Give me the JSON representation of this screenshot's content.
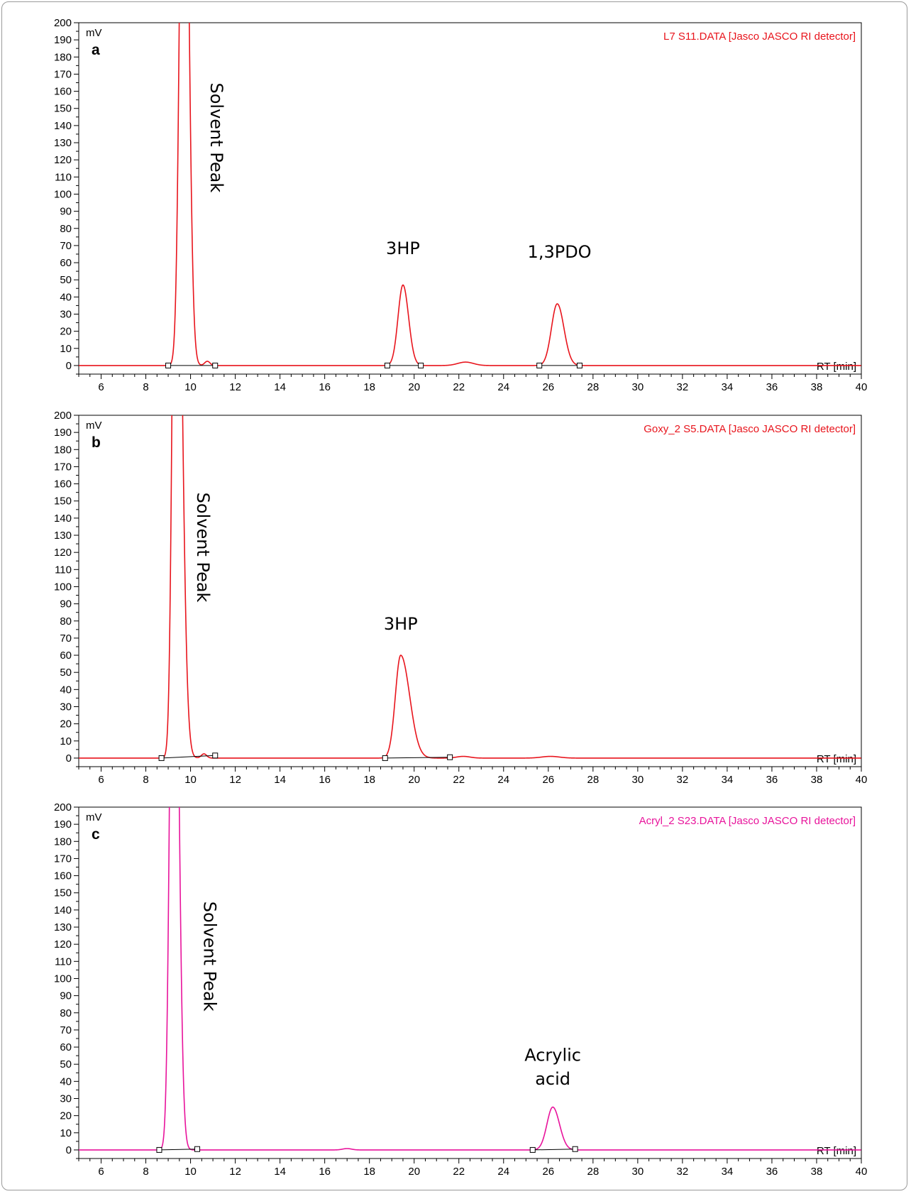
{
  "chart_data": [
    {
      "type": "line",
      "panel_label": "a",
      "file_label": "L7 S11.DATA [Jasco JASCO RI detector]",
      "xlabel": "RT [min]",
      "ylabel": "mV",
      "xlim": [
        5,
        40
      ],
      "ylim": [
        -5,
        200
      ],
      "x_ticks": [
        "6",
        "8",
        "10",
        "12",
        "14",
        "16",
        "18",
        "20",
        "22",
        "24",
        "26",
        "28",
        "30",
        "32",
        "34",
        "36",
        "38",
        "40"
      ],
      "y_ticks": [
        "0",
        "10",
        "20",
        "30",
        "40",
        "50",
        "60",
        "70",
        "80",
        "90",
        "100",
        "110",
        "120",
        "130",
        "140",
        "150",
        "160",
        "170",
        "180",
        "190",
        "200"
      ],
      "color": "#e8141c",
      "series": [
        {
          "peaks": [
            {
              "rt": 9.7,
              "height": 420,
              "sigma_left": 0.17,
              "sigma_right": 0.2
            },
            {
              "rt": 10.75,
              "height": 2.5,
              "sigma_left": 0.12,
              "sigma_right": 0.12
            },
            {
              "rt": 19.5,
              "height": 47,
              "sigma_left": 0.22,
              "sigma_right": 0.25
            },
            {
              "rt": 22.3,
              "height": 2,
              "sigma_left": 0.35,
              "sigma_right": 0.35
            },
            {
              "rt": 26.4,
              "height": 36,
              "sigma_left": 0.26,
              "sigma_right": 0.3
            }
          ]
        }
      ],
      "integration_baselines": [
        {
          "x": [
            9.0,
            11.1
          ],
          "y": [
            0,
            0
          ]
        },
        {
          "x": [
            18.8,
            20.3
          ],
          "y": [
            0,
            0
          ]
        },
        {
          "x": [
            25.6,
            27.4
          ],
          "y": [
            0,
            0
          ]
        }
      ],
      "annotations": [
        {
          "text": "Solvent Peak",
          "x": 10.9,
          "y": 165,
          "rotation": 90
        },
        {
          "text": "3HP",
          "x": 19.5,
          "y": 65,
          "rotation": 0
        },
        {
          "text": "1,3PDO",
          "x": 26.5,
          "y": 63,
          "rotation": 0
        }
      ]
    },
    {
      "type": "line",
      "panel_label": "b",
      "file_label": "Goxy_2 S5.DATA [Jasco JASCO RI detector]",
      "xlabel": "RT [min]",
      "ylabel": "mV",
      "xlim": [
        5,
        40
      ],
      "ylim": [
        -5,
        200
      ],
      "x_ticks": [
        "6",
        "8",
        "10",
        "12",
        "14",
        "16",
        "18",
        "20",
        "22",
        "24",
        "26",
        "28",
        "30",
        "32",
        "34",
        "36",
        "38",
        "40"
      ],
      "y_ticks": [
        "0",
        "10",
        "20",
        "30",
        "40",
        "50",
        "60",
        "70",
        "80",
        "90",
        "100",
        "110",
        "120",
        "130",
        "140",
        "150",
        "160",
        "170",
        "180",
        "190",
        "200"
      ],
      "color": "#e8141c",
      "series": [
        {
          "peaks": [
            {
              "rt": 9.35,
              "height": 430,
              "sigma_left": 0.15,
              "sigma_right": 0.24
            },
            {
              "rt": 10.6,
              "height": 2.5,
              "sigma_left": 0.12,
              "sigma_right": 0.12
            },
            {
              "rt": 19.4,
              "height": 60,
              "sigma_left": 0.24,
              "sigma_right": 0.4
            },
            {
              "rt": 22.2,
              "height": 1,
              "sigma_left": 0.3,
              "sigma_right": 0.3
            },
            {
              "rt": 26.1,
              "height": 1,
              "sigma_left": 0.4,
              "sigma_right": 0.4
            }
          ]
        }
      ],
      "integration_baselines": [
        {
          "x": [
            8.7,
            11.1
          ],
          "y": [
            0,
            1.5
          ]
        },
        {
          "x": [
            18.7,
            21.6
          ],
          "y": [
            0,
            0.5
          ]
        }
      ],
      "annotations": [
        {
          "text": "Solvent Peak",
          "x": 10.3,
          "y": 155,
          "rotation": 90
        },
        {
          "text": "3HP",
          "x": 19.4,
          "y": 75,
          "rotation": 0
        }
      ]
    },
    {
      "type": "line",
      "panel_label": "c",
      "file_label": "Acryl_2 S23.DATA [Jasco JASCO RI detector]",
      "xlabel": "RT [min]",
      "ylabel": "mV",
      "xlim": [
        5,
        40
      ],
      "ylim": [
        -5,
        200
      ],
      "x_ticks": [
        "6",
        "8",
        "10",
        "12",
        "14",
        "16",
        "18",
        "20",
        "22",
        "24",
        "26",
        "28",
        "30",
        "32",
        "34",
        "36",
        "38",
        "40"
      ],
      "y_ticks": [
        "0",
        "10",
        "20",
        "30",
        "40",
        "50",
        "60",
        "70",
        "80",
        "90",
        "100",
        "110",
        "120",
        "130",
        "140",
        "150",
        "160",
        "170",
        "180",
        "190",
        "200"
      ],
      "color": "#e8139b",
      "series": [
        {
          "peaks": [
            {
              "rt": 9.25,
              "height": 430,
              "sigma_left": 0.16,
              "sigma_right": 0.2
            },
            {
              "rt": 17.0,
              "height": 0.8,
              "sigma_left": 0.2,
              "sigma_right": 0.2
            },
            {
              "rt": 26.2,
              "height": 25,
              "sigma_left": 0.26,
              "sigma_right": 0.3
            }
          ]
        }
      ],
      "integration_baselines": [
        {
          "x": [
            8.6,
            10.3
          ],
          "y": [
            0,
            0.5
          ]
        },
        {
          "x": [
            25.3,
            27.2
          ],
          "y": [
            0,
            0.5
          ]
        }
      ],
      "annotations": [
        {
          "text": "Solvent Peak",
          "x": 10.6,
          "y": 145,
          "rotation": 90
        },
        {
          "text": "Acrylic",
          "x": 26.2,
          "y": 52,
          "rotation": 0
        },
        {
          "text": "acid",
          "x": 26.2,
          "y": 38,
          "rotation": 0
        }
      ]
    }
  ]
}
